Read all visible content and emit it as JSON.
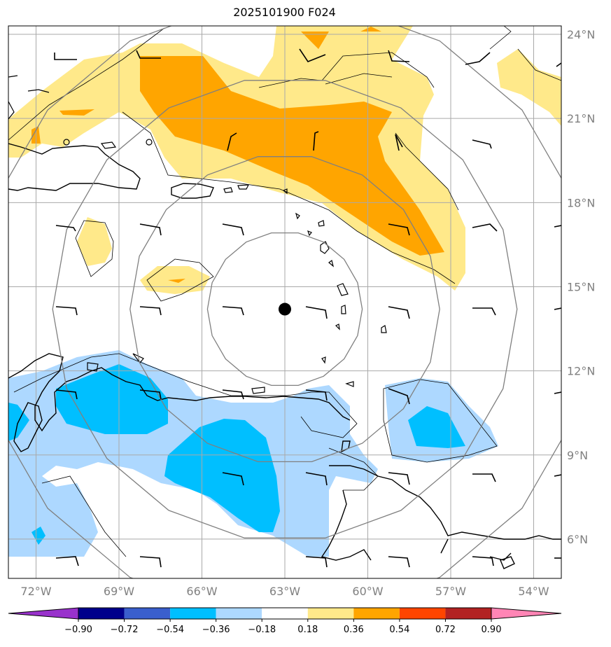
{
  "title": "2025101900 F024",
  "center_marker": {
    "lon": -63,
    "lat": 14.2
  },
  "latitudes": [
    {
      "value": 24,
      "label": "24°N"
    },
    {
      "value": 21,
      "label": "21°N"
    },
    {
      "value": 18,
      "label": "18°N"
    },
    {
      "value": 15,
      "label": "15°N"
    },
    {
      "value": 12,
      "label": "12°N"
    },
    {
      "value": 9,
      "label": "9°N"
    },
    {
      "value": 6,
      "label": "6°N"
    }
  ],
  "longitudes": [
    {
      "value": -72,
      "label": "72°W"
    },
    {
      "value": -69,
      "label": "69°W"
    },
    {
      "value": -66,
      "label": "66°W"
    },
    {
      "value": -63,
      "label": "63°W"
    },
    {
      "value": -60,
      "label": "60°W"
    },
    {
      "value": -57,
      "label": "57°W"
    },
    {
      "value": -54,
      "label": "54°W"
    }
  ],
  "range_rings_deg": [
    2.8,
    5.6,
    8.4,
    11.2
  ],
  "colorbar": {
    "ticks": [
      "−0.90",
      "−0.72",
      "−0.54",
      "−0.36",
      "−0.18",
      "0.18",
      "0.36",
      "0.54",
      "0.72",
      "0.90"
    ],
    "colors": [
      "#9932cc",
      "#00008b",
      "#3a5fcd",
      "#00bfff",
      "#add8ff",
      "#ffffff",
      "#ffe98a",
      "#ffa500",
      "#ff4500",
      "#b22222",
      "#ff85b5"
    ]
  },
  "colors": {
    "pos_weak": "#ffe98a",
    "pos_mod": "#ffa500",
    "neg_weak": "#add8ff",
    "neg_mod": "#00bfff",
    "grid": "#a9a9a9",
    "ring": "#808080"
  }
}
